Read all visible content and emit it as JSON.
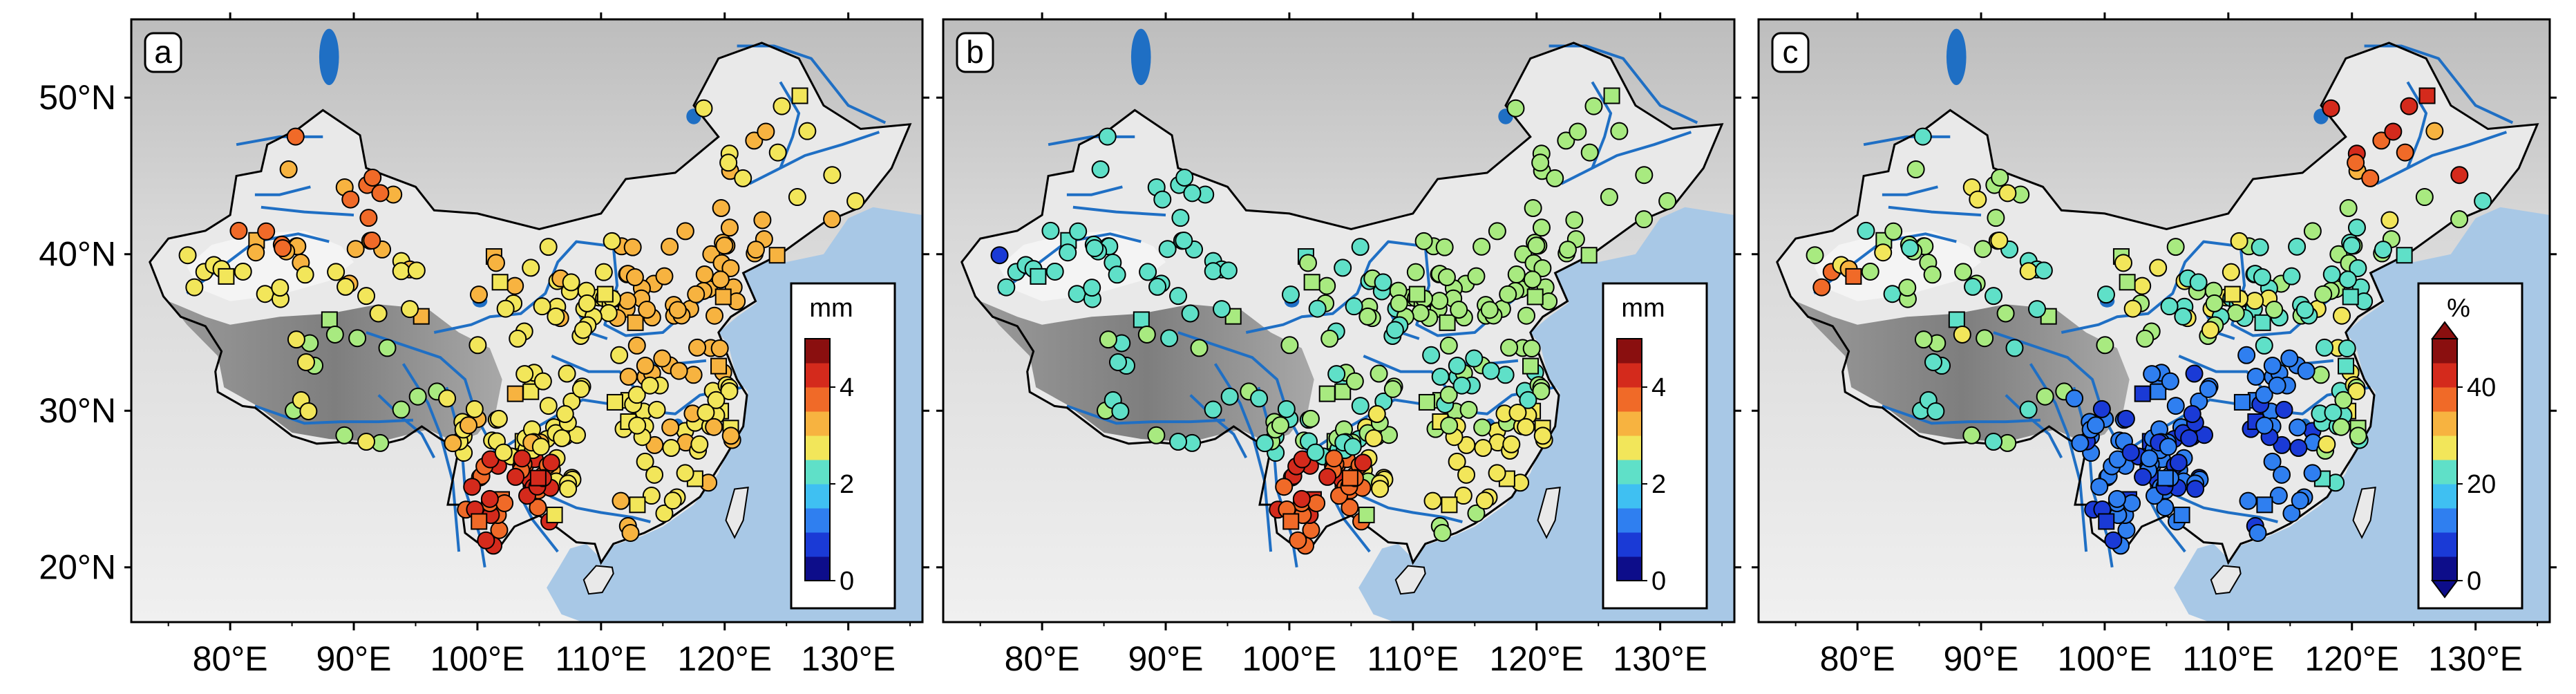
{
  "figure": {
    "lat_labels": [
      "50°N",
      "40°N",
      "30°N",
      "20°N"
    ],
    "lon_labels": [
      "80°E",
      "90°E",
      "100°E",
      "110°E",
      "120°E",
      "130°E"
    ]
  },
  "colors": {
    "sea": "#a8c8e6",
    "land_light": "#e9e9e9",
    "plateau": "#8d8d8d",
    "rivers": "#1f6fc4",
    "boundary": "#000000",
    "scale": [
      "#0d0d8a",
      "#1a3ad6",
      "#2f7ff0",
      "#3fc0f2",
      "#5fe0c8",
      "#a8ea80",
      "#f2e65a",
      "#f7b340",
      "#f06a28",
      "#d42a1c",
      "#8a0f0f"
    ]
  },
  "chart_data": [
    {
      "type": "map-scatter",
      "panel": "a",
      "colorbar": {
        "unit": "mm",
        "ticks": [
          "0",
          "2",
          "4"
        ],
        "range": [
          0,
          5
        ]
      },
      "legend_marker_shapes": [
        "circle",
        "square"
      ]
    },
    {
      "type": "map-scatter",
      "panel": "b",
      "colorbar": {
        "unit": "mm",
        "ticks": [
          "0",
          "2",
          "4"
        ],
        "range": [
          0,
          5
        ]
      },
      "legend_marker_shapes": [
        "circle",
        "square"
      ]
    },
    {
      "type": "map-scatter",
      "panel": "c",
      "colorbar": {
        "unit": "%",
        "ticks": [
          "0",
          "20",
          "40"
        ],
        "range": [
          0,
          50
        ],
        "extend": "both"
      },
      "legend_marker_shapes": [
        "circle",
        "square"
      ]
    }
  ]
}
